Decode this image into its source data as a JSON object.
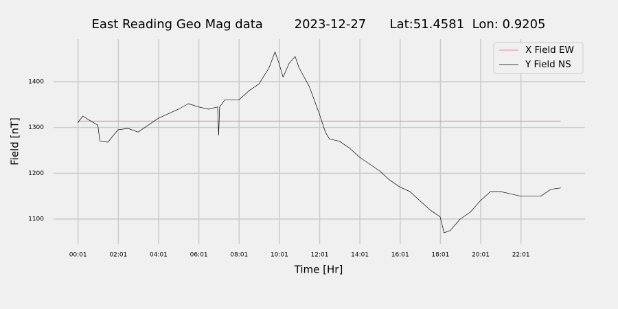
{
  "chart_data": {
    "type": "line",
    "title": "East Reading Geo Mag data        2023-12-27      Lat:51.4581  Lon: 0.9205",
    "xlabel": "Time  [Hr]",
    "ylabel": "Field  [nT]",
    "xlim": [
      -1.2,
      25.2
    ],
    "ylim": [
      1046,
      1493
    ],
    "xticks": [
      {
        "value": 0.0167,
        "label": "00:01"
      },
      {
        "value": 2.0167,
        "label": "02:01"
      },
      {
        "value": 4.0167,
        "label": "04:01"
      },
      {
        "value": 6.0167,
        "label": "06:01"
      },
      {
        "value": 8.0167,
        "label": "08:01"
      },
      {
        "value": 10.0167,
        "label": "10:01"
      },
      {
        "value": 12.0167,
        "label": "12:01"
      },
      {
        "value": 14.0167,
        "label": "14:01"
      },
      {
        "value": 16.0167,
        "label": "16:01"
      },
      {
        "value": 18.0167,
        "label": "18:01"
      },
      {
        "value": 20.0167,
        "label": "20:01"
      },
      {
        "value": 22.0167,
        "label": "22:01"
      }
    ],
    "yticks": [
      1100,
      1200,
      1300,
      1400
    ],
    "grid": true,
    "legend": "upper right",
    "series": [
      {
        "name": "X Field EW",
        "color": "#e07070",
        "width": 0.8,
        "x": [
          0,
          24
        ],
        "values": [
          1314,
          1314
        ]
      },
      {
        "name": "Y Field NS",
        "color": "#000000",
        "width": 0.7,
        "x": [
          0,
          0.25,
          0.5,
          1.0,
          1.1,
          1.5,
          2.0,
          2.5,
          3.0,
          3.5,
          4.0,
          4.5,
          5.0,
          5.5,
          6.0,
          6.5,
          6.95,
          7.0,
          7.05,
          7.3,
          8.0,
          8.5,
          9.0,
          9.5,
          9.8,
          10.0,
          10.2,
          10.5,
          10.8,
          11.0,
          11.5,
          12.0,
          12.3,
          12.5,
          13.0,
          13.5,
          14.0,
          14.5,
          15.0,
          15.5,
          16.0,
          16.5,
          17.0,
          17.5,
          18.0,
          18.2,
          18.5,
          19.0,
          19.5,
          20.0,
          20.5,
          21.0,
          21.5,
          22.0,
          22.5,
          23.0,
          23.5,
          24.0
        ],
        "values": [
          1310,
          1325,
          1318,
          1305,
          1270,
          1268,
          1295,
          1298,
          1290,
          1305,
          1320,
          1330,
          1340,
          1352,
          1345,
          1340,
          1345,
          1283,
          1345,
          1360,
          1360,
          1380,
          1395,
          1430,
          1465,
          1440,
          1410,
          1440,
          1455,
          1430,
          1390,
          1330,
          1290,
          1275,
          1270,
          1255,
          1235,
          1220,
          1205,
          1185,
          1170,
          1160,
          1140,
          1120,
          1105,
          1070,
          1075,
          1100,
          1115,
          1140,
          1160,
          1160,
          1155,
          1150,
          1150,
          1150,
          1165,
          1168
        ]
      }
    ]
  }
}
